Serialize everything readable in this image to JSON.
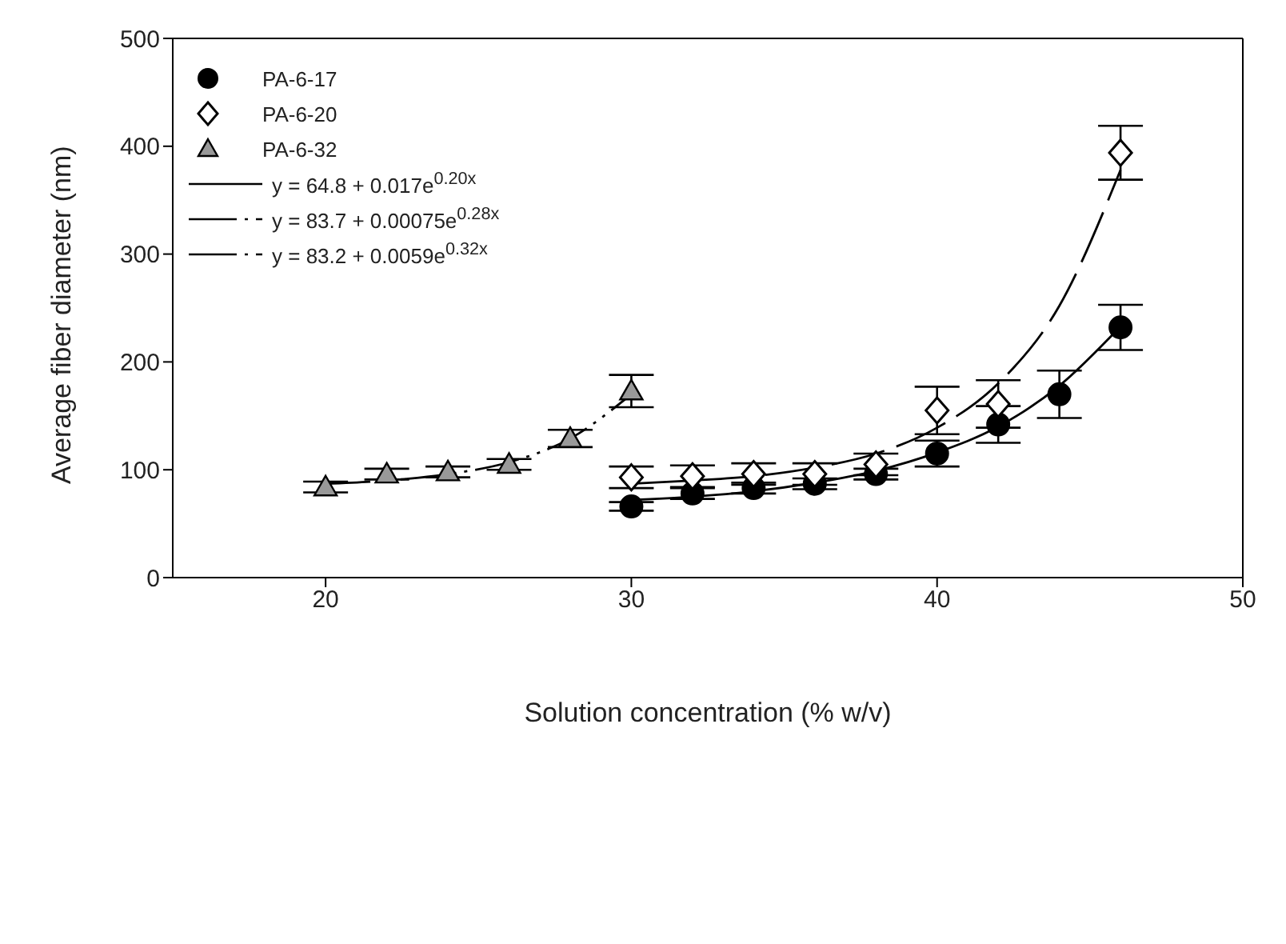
{
  "chart_data": {
    "type": "scatter",
    "xlabel": "Solution concentration (% w/v)",
    "ylabel": "Average fiber diameter (nm)",
    "xlim": [
      15,
      50
    ],
    "xticks": [
      20,
      30,
      40,
      50
    ],
    "ylim": [
      0,
      500
    ],
    "yticks": [
      0,
      100,
      200,
      300,
      400,
      500
    ],
    "legend": "top left",
    "series": [
      {
        "name": "PA-6-17",
        "marker": "circle",
        "color": "#000000",
        "x": [
          30,
          32,
          34,
          36,
          38,
          40,
          42,
          44,
          46
        ],
        "values": [
          66,
          78,
          83,
          87,
          96,
          115,
          142,
          170,
          232
        ],
        "errors": [
          4,
          5,
          5,
          5,
          5,
          12,
          17,
          22,
          21
        ]
      },
      {
        "name": "PA-6-20",
        "marker": "diamond",
        "color": "#ffffff",
        "x": [
          30,
          32,
          34,
          36,
          38,
          40,
          42,
          46
        ],
        "values": [
          93,
          94,
          96,
          96,
          105,
          155,
          161,
          394
        ],
        "errors": [
          10,
          10,
          10,
          10,
          10,
          22,
          22,
          25
        ]
      },
      {
        "name": "PA-6-32",
        "marker": "triangle",
        "color": "#999999",
        "x": [
          20,
          22,
          24,
          26,
          28,
          30
        ],
        "values": [
          84,
          96,
          98,
          105,
          129,
          173
        ],
        "errors": [
          5,
          5,
          5,
          5,
          8,
          15
        ]
      },
      {
        "name": "y = 64.8 + 0.017e$^{0.20x}$",
        "type": "line",
        "line_style": "solid",
        "color": "#000000",
        "x": [
          30,
          32,
          34,
          36,
          38,
          40,
          42,
          44,
          46
        ],
        "values": [
          72,
          75,
          80,
          88,
          99,
          116,
          140,
          178,
          233
        ]
      },
      {
        "name": "y = 83.7 + 0.00075e$^{0.28x}$",
        "type": "line",
        "line_style": "dashed",
        "color": "#000000",
        "x": [
          30,
          32,
          34,
          36,
          38,
          40,
          42,
          44,
          46
        ],
        "values": [
          87,
          90,
          94,
          102,
          115,
          139,
          180,
          252,
          378
        ]
      },
      {
        "name": "y = 83.2 + 0.0059e$^{0.32x}$",
        "type": "line",
        "line_style": "dotted",
        "color": "#000000",
        "x": [
          20,
          22,
          24,
          26,
          28,
          30
        ],
        "values": [
          87,
          90,
          96,
          107,
          129,
          170
        ]
      }
    ]
  }
}
